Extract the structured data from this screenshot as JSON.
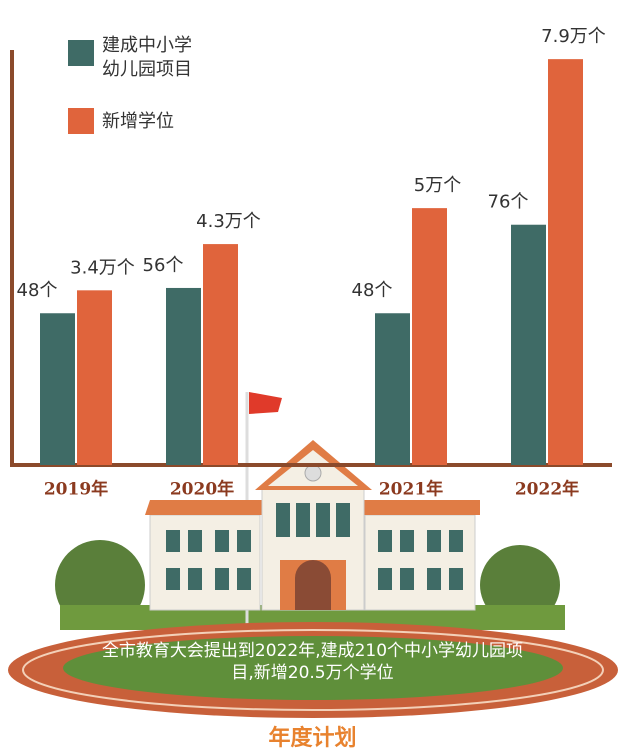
{
  "chart_data": {
    "type": "bar",
    "categories": [
      "2019年",
      "2020年",
      "2021年",
      "2022年"
    ],
    "series": [
      {
        "name": "建成中小学幼儿园项目",
        "color": "#3f6b66",
        "values": [
          48,
          56,
          48,
          76
        ],
        "value_labels": [
          "48个",
          "56个",
          "48个",
          "76个"
        ]
      },
      {
        "name": "新增学位",
        "color": "#e0643c",
        "axis": "y2",
        "values": [
          3.4,
          4.3,
          5,
          7.9
        ],
        "value_labels": [
          "3.4万个",
          "4.3万个",
          "5万个",
          "7.9万个"
        ]
      }
    ],
    "ylim": [
      0,
      130
    ],
    "y2lim": [
      0,
      8
    ],
    "legend": "top-left",
    "annotation": "全市教育大会提出到2022年,建成210个中小学幼儿园项目,新增20.5万个学位",
    "footer": "年度计划"
  }
}
